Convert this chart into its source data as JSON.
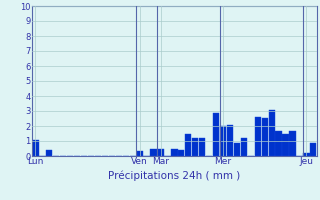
{
  "title": "",
  "xlabel": "Précipitations 24h ( mm )",
  "ylabel": "",
  "ylim": [
    0,
    10
  ],
  "background_color": "#dff4f4",
  "bar_color": "#0033cc",
  "bar_edge_color": "#1144dd",
  "grid_color": "#aacccc",
  "vline_color": "#5566aa",
  "values": [
    1.1,
    0.0,
    0.4,
    0.0,
    0.0,
    0.0,
    0.0,
    0.0,
    0.0,
    0.0,
    0.0,
    0.0,
    0.0,
    0.0,
    0.0,
    0.35,
    0.0,
    0.45,
    0.5,
    0.0,
    0.5,
    0.4,
    1.5,
    1.2,
    1.2,
    0.0,
    2.9,
    2.0,
    2.1,
    0.9,
    1.2,
    0.0,
    2.6,
    2.55,
    3.1,
    1.65,
    1.5,
    1.7,
    0.0,
    0.2,
    0.9
  ],
  "day_labels": [
    "Lun",
    "Ven",
    "Mar",
    "Mer",
    "Jeu"
  ],
  "day_positions": [
    0,
    15,
    18,
    27,
    39
  ],
  "vline_positions": [
    15,
    18,
    27,
    39
  ],
  "yticks": [
    0,
    1,
    2,
    3,
    4,
    5,
    6,
    7,
    8,
    9,
    10
  ]
}
